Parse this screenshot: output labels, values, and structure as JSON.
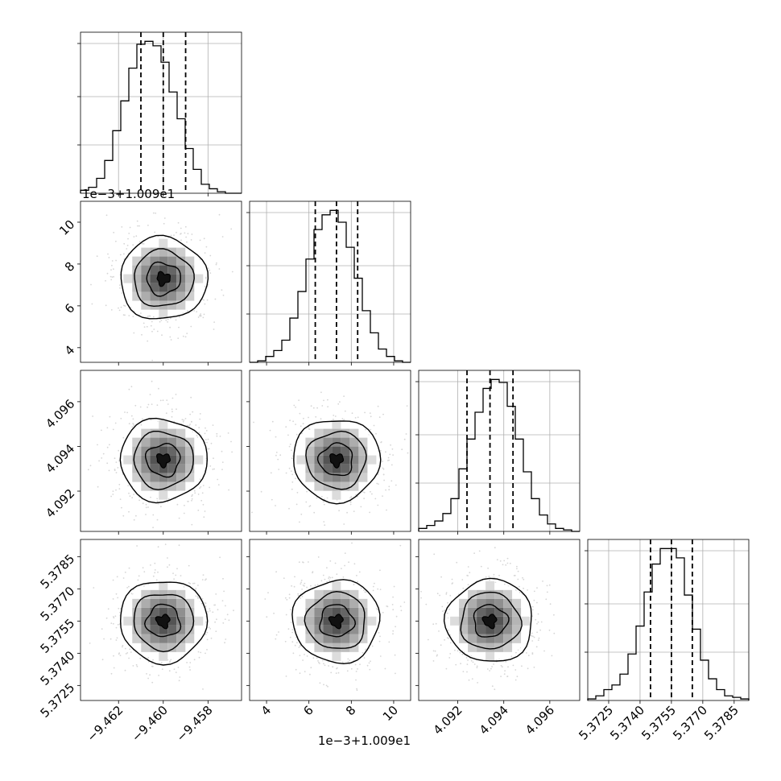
{
  "chart_data": [
    {
      "type": "histogram",
      "panel": "param-1-marginal",
      "x_ticks": [
        "−9.462",
        "−9.460",
        "−9.458"
      ],
      "xlim": [
        -9.4637,
        -9.4565
      ],
      "bins_x": [
        -9.4633,
        -9.4629,
        -9.4626,
        -9.4622,
        -9.4619,
        -9.4615,
        -9.4612,
        -9.4608,
        -9.4604,
        -9.4601,
        -9.4597,
        -9.4594,
        -9.459,
        -9.4587,
        -9.4583,
        -9.458,
        -9.4576,
        -9.4572,
        -9.4569,
        -9.4565
      ],
      "counts": [
        2,
        4,
        10,
        22,
        42,
        62,
        84,
        100,
        102,
        99,
        88,
        68,
        50,
        30,
        16,
        6,
        3,
        1,
        0,
        0
      ],
      "quantiles": [
        -9.461,
        -9.46,
        -9.459
      ]
    },
    {
      "type": "histogram",
      "panel": "param-2-marginal",
      "x_ticks": [
        "4",
        "6",
        "8",
        "10"
      ],
      "xlim": [
        3.2,
        10.8
      ],
      "offset_label": "1e−3+1.009e1",
      "bins_x": [
        3.2,
        3.6,
        4.0,
        4.4,
        4.8,
        5.2,
        5.6,
        6.0,
        6.4,
        6.8,
        7.2,
        7.6,
        8.0,
        8.4,
        8.8,
        9.2,
        9.6,
        10.0,
        10.4,
        10.8
      ],
      "counts": [
        0,
        1,
        4,
        8,
        15,
        30,
        48,
        70,
        90,
        100,
        103,
        95,
        78,
        57,
        35,
        20,
        9,
        4,
        1,
        0
      ],
      "quantiles": [
        6.3,
        7.3,
        8.3
      ]
    },
    {
      "type": "histogram",
      "panel": "param-3-marginal",
      "x_ticks": [
        "4.092",
        "4.094",
        "4.096"
      ],
      "xlim": [
        4.0903,
        4.0973
      ],
      "bins_x": [
        4.0903,
        4.0907,
        4.091,
        4.0914,
        4.0917,
        4.0921,
        4.0924,
        4.0928,
        4.0931,
        4.0935,
        4.0938,
        4.0942,
        4.0945,
        4.0949,
        4.0952,
        4.0956,
        4.0959,
        4.0963,
        4.0966,
        4.097
      ],
      "counts": [
        2,
        4,
        7,
        12,
        22,
        42,
        62,
        80,
        96,
        102,
        100,
        84,
        62,
        40,
        22,
        11,
        5,
        2,
        1,
        0
      ],
      "quantiles": [
        4.0924,
        4.0934,
        4.0944
      ]
    },
    {
      "type": "histogram",
      "panel": "param-4-marginal",
      "x_ticks": [
        "5.3725",
        "5.3740",
        "5.3755",
        "5.3770",
        "5.3785"
      ],
      "xlim": [
        5.3715,
        5.3792
      ],
      "bins_x": [
        5.3715,
        5.3719,
        5.3723,
        5.3727,
        5.3731,
        5.3735,
        5.3738,
        5.3742,
        5.3746,
        5.375,
        5.3754,
        5.3758,
        5.3762,
        5.3765,
        5.3769,
        5.3773,
        5.3777,
        5.3781,
        5.3785,
        5.3789
      ],
      "counts": [
        1,
        3,
        7,
        10,
        17,
        30,
        48,
        70,
        88,
        98,
        98,
        92,
        68,
        46,
        26,
        14,
        7,
        3,
        2,
        1
      ],
      "quantiles": [
        5.3745,
        5.3755,
        5.3765
      ]
    },
    {
      "type": "density-contour",
      "panel": "param-1-vs-param-2",
      "ylim": [
        3.3,
        11.0
      ],
      "y_ticks": [
        "4",
        "6",
        "8",
        "10"
      ],
      "offset_label": "1e−3+1.009e1",
      "center": [
        -9.46,
        7.3
      ]
    },
    {
      "type": "density-contour",
      "panel": "param-1-vs-param-3",
      "ylim": [
        4.0902,
        4.0974
      ],
      "y_ticks": [
        "4.092",
        "4.094",
        "4.096"
      ],
      "center": [
        -9.46,
        4.0934
      ]
    },
    {
      "type": "density-contour",
      "panel": "param-2-vs-param-3",
      "center": [
        7.3,
        4.0934
      ]
    },
    {
      "type": "density-contour",
      "panel": "param-1-vs-param-4",
      "ylim": [
        5.3718,
        5.3793
      ],
      "y_ticks": [
        "5.3725",
        "5.3740",
        "5.3755",
        "5.3770",
        "5.3785"
      ],
      "center": [
        -9.46,
        5.3755
      ]
    },
    {
      "type": "density-contour",
      "panel": "param-2-vs-param-4",
      "center": [
        7.3,
        5.3755
      ]
    },
    {
      "type": "density-contour",
      "panel": "param-3-vs-param-4",
      "center": [
        4.0934,
        5.3755
      ]
    }
  ]
}
